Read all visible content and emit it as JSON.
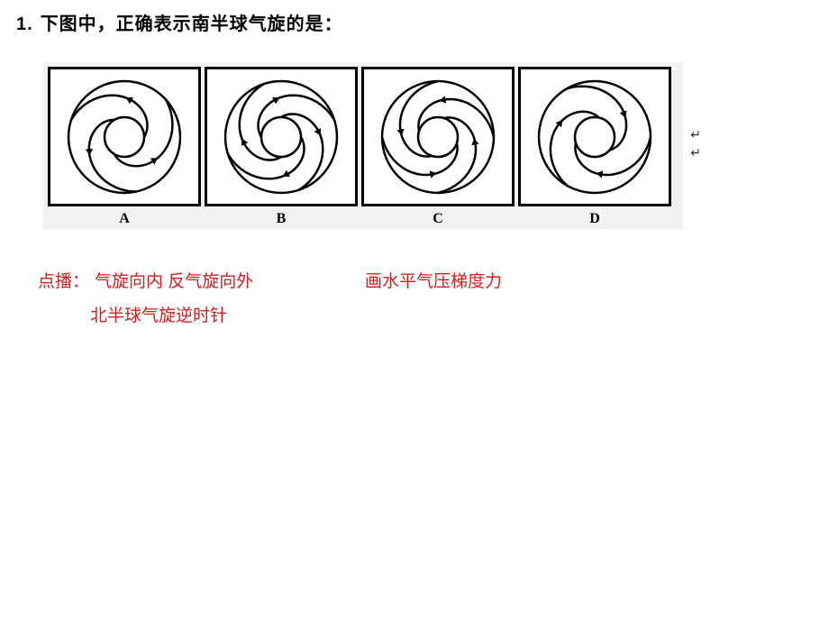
{
  "question": {
    "number": "1.",
    "text": "下图中，正确表示南半球气旋的是："
  },
  "figure": {
    "background_color": "#f2f2f2",
    "border_color": "#000000",
    "options": [
      "A",
      "B",
      "C",
      "D"
    ],
    "spiral_style": {
      "stroke": "#000000",
      "stroke_width": 2.5,
      "outer_radius": 62,
      "inner_radius": 22,
      "arrow_size": 7
    },
    "diagrams": [
      {
        "type": "cyclone",
        "direction": "outward",
        "rotation": "ccw",
        "arms": 3
      },
      {
        "type": "cyclone",
        "direction": "outward",
        "rotation": "cw",
        "arms": 4
      },
      {
        "type": "cyclone",
        "direction": "inward",
        "rotation": "ccw",
        "arms": 4
      },
      {
        "type": "cyclone",
        "direction": "inward",
        "rotation": "cw",
        "arms": 3
      }
    ],
    "side_marks": "↵\n↵"
  },
  "hints": {
    "color": "#d02020",
    "label": "点播：",
    "line1_col1": "气旋向内 反气旋向外",
    "line1_col2": "画水平气压梯度力",
    "line2": "北半球气旋逆时针"
  }
}
